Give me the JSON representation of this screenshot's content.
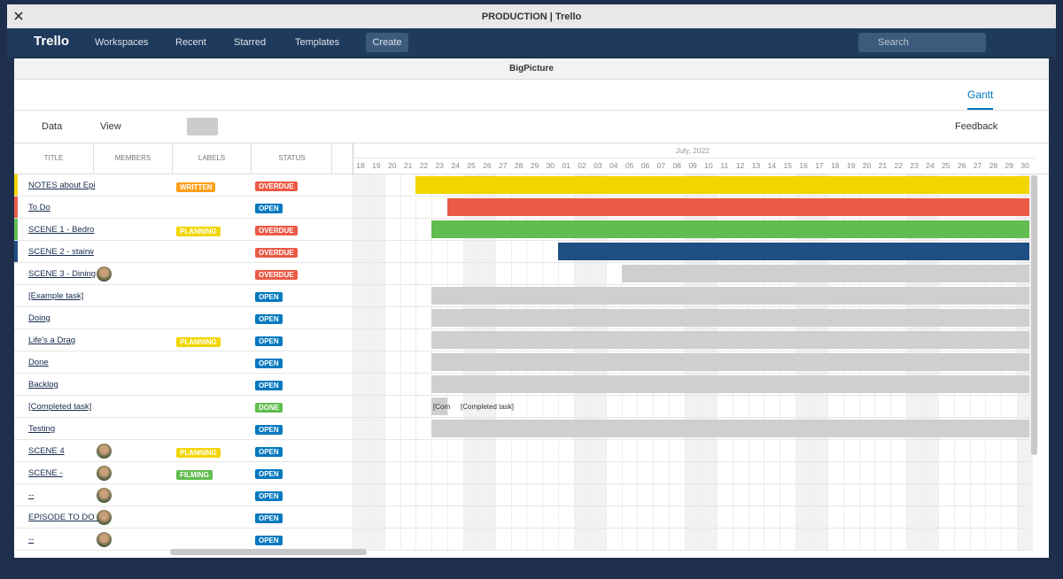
{
  "window_title": "PRODUCTION | Trello",
  "nav": {
    "logo": "Trello",
    "menus": [
      "Workspaces",
      "Recent",
      "Starred",
      "Templates"
    ],
    "create": "Create",
    "search": "Search"
  },
  "modal": {
    "title": "BigPicture",
    "tab": "Gantt"
  },
  "toolbar": {
    "data": "Data",
    "view": "View",
    "feedback": "Feedback"
  },
  "columns": [
    "TITLE",
    "MEMBERS",
    "LABELS",
    "STATUS"
  ],
  "timeline": {
    "month": "July, 2022",
    "days": [
      "18",
      "19",
      "20",
      "21",
      "22",
      "23",
      "24",
      "25",
      "26",
      "27",
      "28",
      "29",
      "30",
      "01",
      "02",
      "03",
      "04",
      "05",
      "06",
      "07",
      "08",
      "09",
      "10",
      "11",
      "12",
      "13",
      "14",
      "15",
      "16",
      "17",
      "18",
      "19",
      "20",
      "21",
      "22",
      "23",
      "24",
      "25",
      "26",
      "27",
      "28",
      "29",
      "30"
    ]
  },
  "rows": [
    {
      "title": "NOTES about Epi",
      "label": {
        "text": "WRITTEN",
        "color": "#ff9f1a"
      },
      "status": {
        "text": "OVERDUE",
        "color": "#eb5a46"
      }
    },
    {
      "title": "To Do",
      "status": {
        "text": "OPEN",
        "color": "#0079bf"
      }
    },
    {
      "title": "SCENE 1 - Bedro",
      "label": {
        "text": "PLANNING",
        "color": "#f2d600"
      },
      "status": {
        "text": "OVERDUE",
        "color": "#eb5a46"
      }
    },
    {
      "title": "SCENE 2 - stairw",
      "status": {
        "text": "OVERDUE",
        "color": "#eb5a46"
      }
    },
    {
      "title": "SCENE 3 - Dining",
      "status": {
        "text": "OVERDUE",
        "color": "#eb5a46"
      }
    },
    {
      "title": "[Example task]",
      "status": {
        "text": "OPEN",
        "color": "#0079bf"
      }
    },
    {
      "title": "Doing",
      "status": {
        "text": "OPEN",
        "color": "#0079bf"
      }
    },
    {
      "title": "Life's a Drag",
      "label": {
        "text": "PLANNING",
        "color": "#f2d600"
      },
      "status": {
        "text": "OPEN",
        "color": "#0079bf"
      }
    },
    {
      "title": "Done",
      "status": {
        "text": "OPEN",
        "color": "#0079bf"
      }
    },
    {
      "title": "Backlog",
      "status": {
        "text": "OPEN",
        "color": "#0079bf"
      }
    },
    {
      "title": "[Completed task]",
      "status": {
        "text": "DONE",
        "color": "#61bd4f"
      }
    },
    {
      "title": "Testing",
      "status": {
        "text": "OPEN",
        "color": "#0079bf"
      }
    },
    {
      "title": "SCENE 4",
      "label": {
        "text": "PLANNING",
        "color": "#f2d600"
      },
      "status": {
        "text": "OPEN",
        "color": "#0079bf"
      }
    },
    {
      "title": "SCENE -",
      "label": {
        "text": "FILMING",
        "color": "#61bd4f"
      },
      "status": {
        "text": "OPEN",
        "color": "#0079bf"
      }
    },
    {
      "title": "--",
      "status": {
        "text": "OPEN",
        "color": "#0079bf"
      }
    },
    {
      "title": "EPISODE TO DO I",
      "status": {
        "text": "OPEN",
        "color": "#0079bf"
      }
    },
    {
      "title": "--",
      "status": {
        "text": "OPEN",
        "color": "#0079bf"
      }
    }
  ],
  "bar_captions": [
    "[Com",
    "[Completed task]"
  ]
}
